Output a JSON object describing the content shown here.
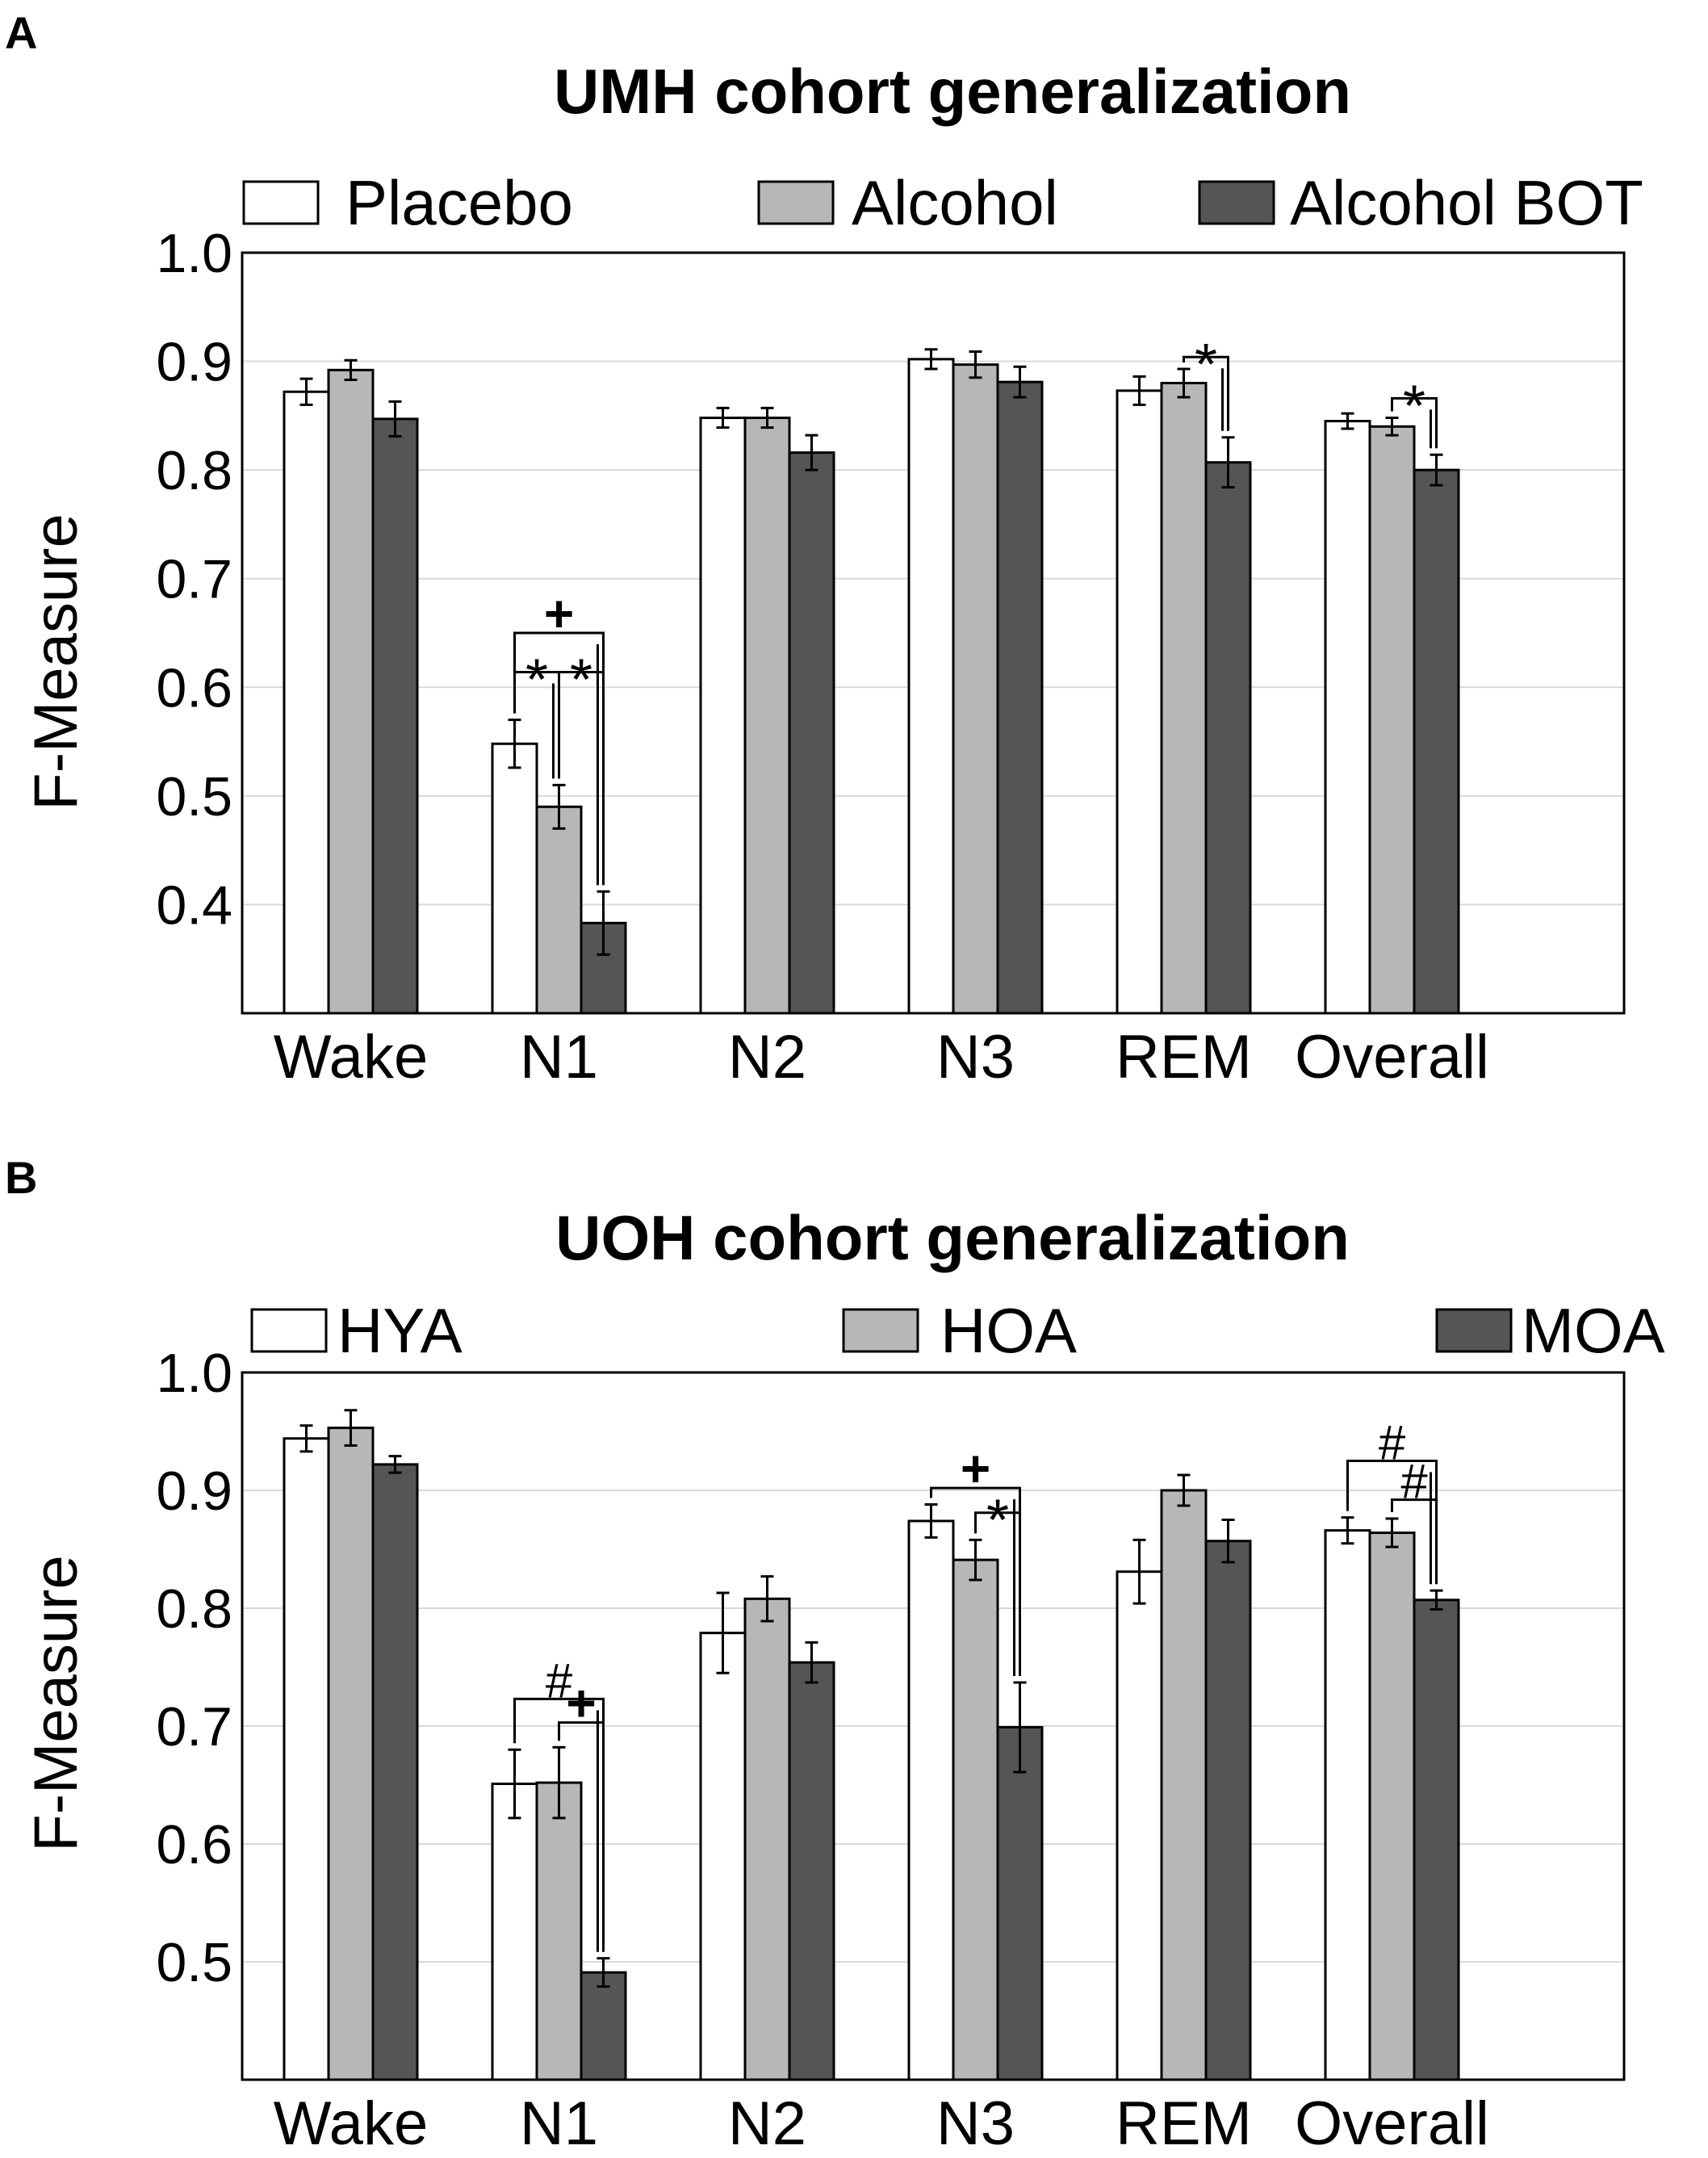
{
  "chart_data": [
    {
      "panel": "A",
      "type": "bar",
      "title": "UMH cohort generalization",
      "xlabel": "",
      "ylabel": "F-Measure",
      "ylim": [
        0.3,
        1.0
      ],
      "yticks": [
        "0.4",
        "0.5",
        "0.6",
        "0.7",
        "0.8",
        "0.9",
        "1.0"
      ],
      "grid": true,
      "legend_position": "top",
      "categories": [
        "Wake",
        "N1",
        "N2",
        "N3",
        "REM",
        "Overall"
      ],
      "series": [
        {
          "name": "Placebo",
          "color": "#ffffff",
          "values": [
            0.872,
            0.548,
            0.848,
            0.902,
            0.873,
            0.845
          ],
          "errors": [
            0.012,
            0.022,
            0.009,
            0.009,
            0.013,
            0.007
          ]
        },
        {
          "name": "Alcohol",
          "color": "#b7b7b7",
          "values": [
            0.892,
            0.49,
            0.848,
            0.897,
            0.88,
            0.84
          ],
          "errors": [
            0.009,
            0.02,
            0.009,
            0.012,
            0.013,
            0.008
          ]
        },
        {
          "name": "Alcohol BOT",
          "color": "#555555",
          "values": [
            0.847,
            0.383,
            0.816,
            0.881,
            0.807,
            0.8
          ],
          "errors": [
            0.016,
            0.029,
            0.016,
            0.014,
            0.023,
            0.014
          ]
        }
      ],
      "annotations": [
        {
          "category": "N1",
          "from": 0,
          "to": 2,
          "symbol": "+",
          "level": 0.65
        },
        {
          "category": "N1",
          "from": 0,
          "to": 1,
          "symbol": "*",
          "level": 0.614
        },
        {
          "category": "N1",
          "from": 1,
          "to": 2,
          "symbol": "*",
          "level": 0.614
        },
        {
          "category": "REM",
          "from": 1,
          "to": 2,
          "symbol": "*",
          "level": 0.904
        },
        {
          "category": "Overall",
          "from": 1,
          "to": 2,
          "symbol": "*",
          "level": 0.866
        }
      ]
    },
    {
      "panel": "B",
      "type": "bar",
      "title": "UOH cohort generalization",
      "xlabel": "",
      "ylabel": "F-Measure",
      "ylim": [
        0.4,
        1.0
      ],
      "yticks": [
        "0.5",
        "0.6",
        "0.7",
        "0.8",
        "0.9",
        "1.0"
      ],
      "grid": true,
      "legend_position": "top",
      "categories": [
        "Wake",
        "N1",
        "N2",
        "N3",
        "REM",
        "Overall"
      ],
      "series": [
        {
          "name": "HYA",
          "color": "#ffffff",
          "values": [
            0.944,
            0.651,
            0.779,
            0.874,
            0.831,
            0.866
          ],
          "errors": [
            0.011,
            0.029,
            0.034,
            0.014,
            0.027,
            0.011
          ]
        },
        {
          "name": "HOA",
          "color": "#b7b7b7",
          "values": [
            0.953,
            0.652,
            0.808,
            0.841,
            0.9,
            0.864
          ],
          "errors": [
            0.015,
            0.03,
            0.019,
            0.017,
            0.013,
            0.012
          ]
        },
        {
          "name": "MOA",
          "color": "#555555",
          "values": [
            0.922,
            0.491,
            0.754,
            0.699,
            0.857,
            0.807
          ],
          "errors": [
            0.007,
            0.012,
            0.017,
            0.038,
            0.018,
            0.008
          ]
        }
      ],
      "annotations": [
        {
          "category": "N1",
          "from": 0,
          "to": 2,
          "symbol": "#",
          "level": 0.723
        },
        {
          "category": "N1",
          "from": 1,
          "to": 2,
          "symbol": "+",
          "level": 0.703
        },
        {
          "category": "N3",
          "from": 0,
          "to": 2,
          "symbol": "+",
          "level": 0.902
        },
        {
          "category": "N3",
          "from": 1,
          "to": 2,
          "symbol": "*",
          "level": 0.881
        },
        {
          "category": "Overall",
          "from": 0,
          "to": 2,
          "symbol": "#",
          "level": 0.925
        },
        {
          "category": "Overall",
          "from": 1,
          "to": 2,
          "symbol": "#",
          "level": 0.892
        }
      ]
    }
  ]
}
